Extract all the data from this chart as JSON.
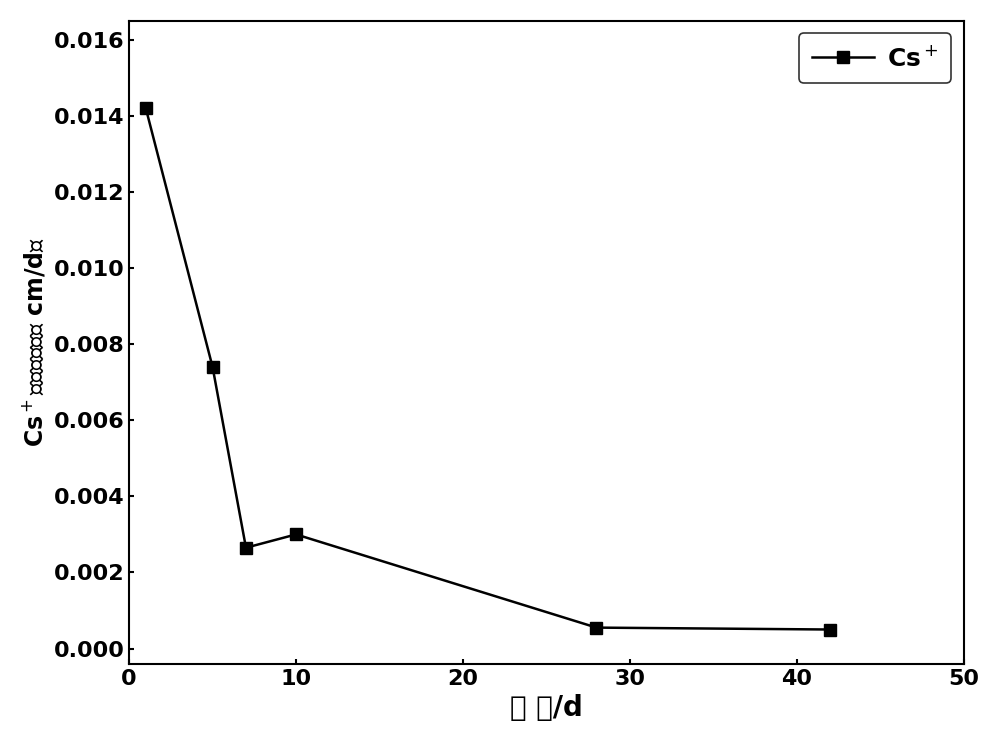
{
  "x": [
    1,
    5,
    7,
    10,
    28,
    42
  ],
  "y": [
    0.0142,
    0.0074,
    0.00265,
    0.003,
    0.00055,
    0.0005
  ],
  "line_color": "#000000",
  "marker": "s",
  "marker_size": 9,
  "marker_facecolor": "#000000",
  "line_width": 1.8,
  "xlabel": "时 间/d",
  "ylabel_line1": "Cs⁺的浸出率／（ cm/d）",
  "xlim": [
    0,
    50
  ],
  "ylim": [
    -0.0004,
    0.0165
  ],
  "xticks": [
    0,
    10,
    20,
    30,
    40,
    50
  ],
  "yticks": [
    0.0,
    0.002,
    0.004,
    0.006,
    0.008,
    0.01,
    0.012,
    0.014,
    0.016
  ],
  "legend_label": "Cs$^+$",
  "bg_color": "#ffffff",
  "xlabel_fontsize": 20,
  "ylabel_fontsize": 17,
  "tick_fontsize": 16,
  "legend_fontsize": 18
}
